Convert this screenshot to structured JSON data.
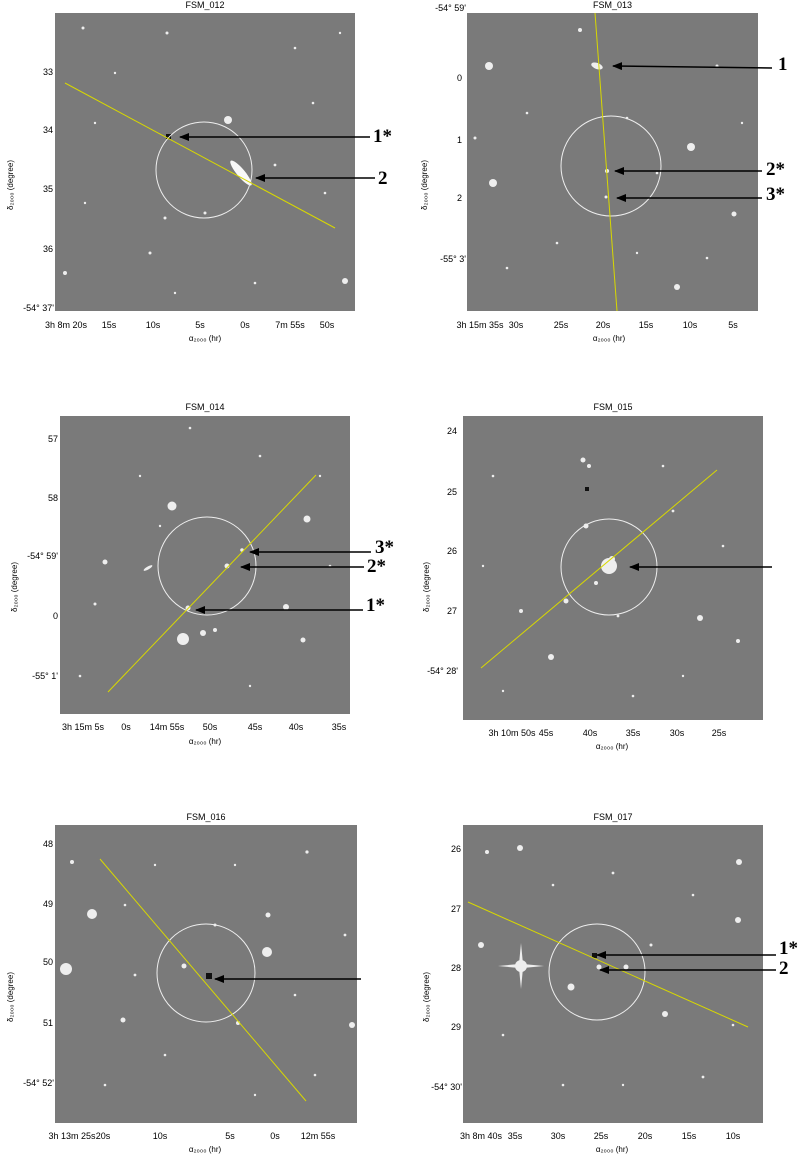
{
  "y_axis_label": "δ₂₀₀₀ (degree)",
  "x_axis_label": "α₂₀₀₀ (hr)",
  "panels": [
    {
      "title": "FSM_012",
      "y_ticks": [
        "33",
        "34",
        "35",
        "36",
        "-54° 37'"
      ],
      "x_ticks": [
        "3h 8m 20s",
        "15s",
        "10s",
        "5s",
        "0s",
        "7m 55s",
        "50s"
      ],
      "callouts": [
        "1*",
        "2"
      ]
    },
    {
      "title": "FSM_013",
      "y_ticks": [
        "-54° 59'",
        "0",
        "1",
        "2",
        "-55° 3'"
      ],
      "x_ticks": [
        "3h 15m 35s",
        "30s",
        "25s",
        "20s",
        "15s",
        "10s",
        "5s"
      ],
      "callouts": [
        "1",
        "2*",
        "3*"
      ]
    },
    {
      "title": "FSM_014",
      "y_ticks": [
        "57",
        "58",
        "-54° 59'",
        "0",
        "-55° 1'"
      ],
      "x_ticks": [
        "3h 15m 5s",
        "0s",
        "14m 55s",
        "50s",
        "45s",
        "40s",
        "35s"
      ],
      "callouts": [
        "3*",
        "2*",
        "1*"
      ]
    },
    {
      "title": "FSM_015",
      "y_ticks": [
        "24",
        "25",
        "26",
        "27",
        "-54° 28'"
      ],
      "x_ticks": [
        "3h 10m 50s",
        "45s",
        "40s",
        "35s",
        "30s",
        "25s"
      ],
      "callouts": []
    },
    {
      "title": "FSM_016",
      "y_ticks": [
        "48",
        "49",
        "50",
        "51",
        "-54° 52'"
      ],
      "x_ticks": [
        "3h 13m 25s",
        "20s",
        "10s",
        "5s",
        "0s",
        "12m 55s"
      ],
      "callouts": []
    },
    {
      "title": "FSM_017",
      "y_ticks": [
        "26",
        "27",
        "28",
        "29",
        "-54° 30'"
      ],
      "x_ticks": [
        "3h 8m 40s",
        "35s",
        "30s",
        "25s",
        "20s",
        "15s",
        "10s"
      ],
      "callouts": [
        "1*",
        "2"
      ]
    }
  ]
}
